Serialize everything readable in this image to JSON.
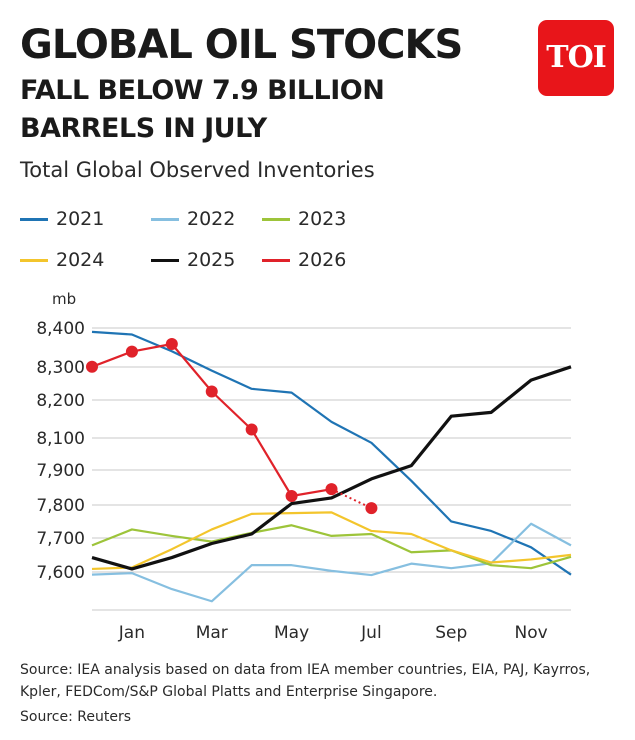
{
  "header": {
    "title_line1": "GLOBAL OIL STOCKS",
    "title_line2": "FALL BELOW 7.9 BILLION BARRELS IN JULY",
    "logo_text": "TOI",
    "subtitle": "Total Global Observed Inventories"
  },
  "footer": {
    "source_line1": "Source: IEA analysis based on data from IEA member countries, EIA, PAJ, Kayrros, Kpler, FEDCom/S&P Global Platts and Enterprise Singapore.",
    "source_line2": "Source: Reuters"
  },
  "colors": {
    "2021": "#1f74b4",
    "2022": "#86bfe0",
    "2023": "#9dc43a",
    "2024": "#f3c52c",
    "2025": "#111111",
    "2026": "#e0222a",
    "logo": "#e8151a"
  },
  "chart_data": {
    "type": "line",
    "unit": "mb",
    "x_tick_labels": [
      "Jan",
      "Mar",
      "May",
      "Jul",
      "Sep",
      "Nov"
    ],
    "y_tick_labels": [
      "8,400",
      "8,300",
      "8,200",
      "8,100",
      "7,900",
      "7,800",
      "7,700",
      "7,600"
    ],
    "grid": true,
    "legend_position": "top",
    "series": [
      {
        "name": "2021",
        "values": [
          8332,
          8325,
          8281,
          8230,
          8182,
          8172,
          8095,
          8040,
          7940,
          7833,
          7808,
          7765,
          7693
        ]
      },
      {
        "name": "2022",
        "values": [
          7693,
          7697,
          7655,
          7623,
          7718,
          7718,
          7703,
          7692,
          7722,
          7710,
          7723,
          7827,
          7770
        ]
      },
      {
        "name": "2023",
        "values": [
          7770,
          7812,
          7795,
          7780,
          7803,
          7823,
          7795,
          7800,
          7752,
          7757,
          7718,
          7710,
          7740
        ]
      },
      {
        "name": "2024",
        "values": [
          7708,
          7712,
          7760,
          7812,
          7853,
          7855,
          7857,
          7808,
          7800,
          7757,
          7725,
          7733,
          7745
        ]
      },
      {
        "name": "2025",
        "values": [
          7738,
          7708,
          7738,
          7775,
          7800,
          7880,
          7895,
          7945,
          7980,
          8110,
          8120,
          8205,
          8240
        ]
      },
      {
        "name": "2026",
        "values": [
          8240,
          8280,
          8300,
          8175,
          8075,
          7900,
          7918,
          7868
        ],
        "dotted_last_segment": true
      }
    ]
  }
}
